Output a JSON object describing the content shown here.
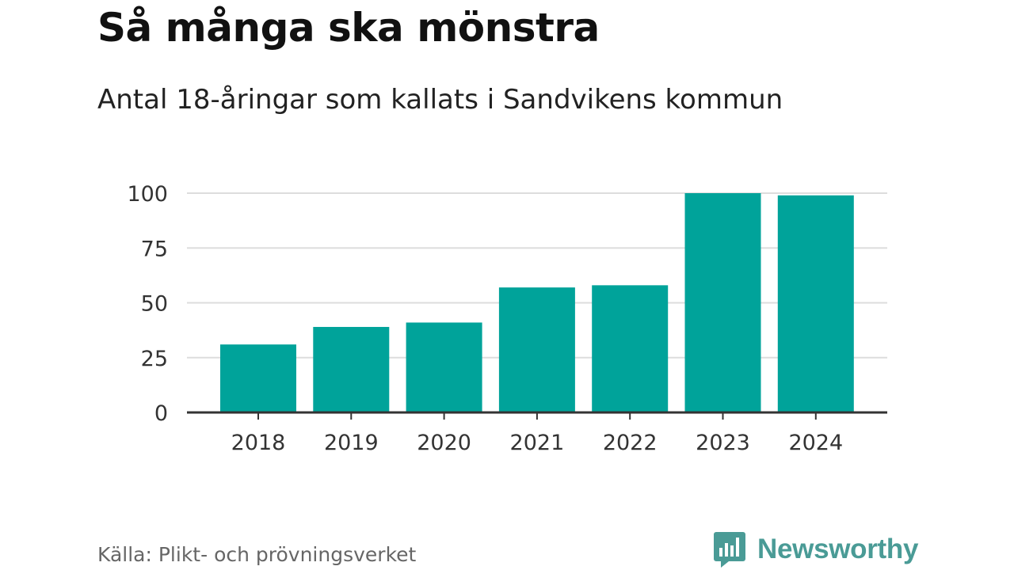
{
  "title": "Så många ska mönstra",
  "subtitle": "Antal 18-åringar som kallats i Sandvikens kommun",
  "source": "Källa: Plikt- och prövningsverket",
  "brand": "Newsworthy",
  "colors": {
    "bar": "#00a39a",
    "grid": "#dddddd",
    "axis": "#333333",
    "brand": "#4a9b96"
  },
  "chart_data": {
    "type": "bar",
    "title": "Så många ska mönstra",
    "subtitle": "Antal 18-åringar som kallats i Sandvikens kommun",
    "xlabel": "",
    "ylabel": "",
    "categories": [
      "2018",
      "2019",
      "2020",
      "2021",
      "2022",
      "2023",
      "2024"
    ],
    "values": [
      31,
      39,
      41,
      57,
      58,
      100,
      99
    ],
    "ylim": [
      0,
      100
    ],
    "yticks": [
      0,
      25,
      50,
      75,
      100
    ],
    "grid": true
  }
}
